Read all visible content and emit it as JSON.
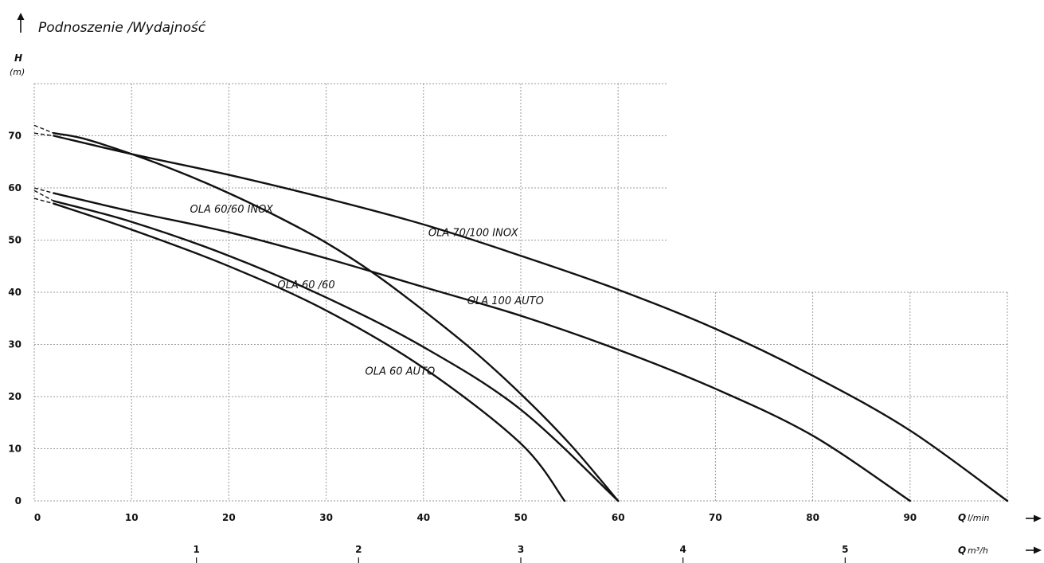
{
  "chart_data": {
    "type": "line",
    "title": "Podnoszenie /Wydajność",
    "ylabel_symbol": "H",
    "ylabel_unit": "(m)",
    "xlabel_symbol": "Q",
    "xlabel_unit": "l/min",
    "x2label_symbol": "Q",
    "x2label_unit": "m³/h",
    "xlim": [
      0,
      100
    ],
    "ylim": [
      0,
      80
    ],
    "x_ticks": [
      "0",
      "10",
      "20",
      "30",
      "40",
      "50",
      "60",
      "70",
      "80",
      "90"
    ],
    "x_tick_values": [
      0,
      10,
      20,
      30,
      40,
      50,
      60,
      70,
      80,
      90
    ],
    "y_ticks": [
      "0",
      "10",
      "20",
      "30",
      "40",
      "50",
      "60",
      "70"
    ],
    "y_tick_values": [
      0,
      10,
      20,
      30,
      40,
      50,
      60,
      70
    ],
    "x2_ticks": [
      "1",
      "2",
      "3",
      "4",
      "5"
    ],
    "x2_tick_values": [
      1,
      2,
      3,
      4,
      5
    ],
    "grid": true,
    "series": [
      {
        "name": "OLA 60/60 INOX",
        "label_at": [
          16,
          56
        ],
        "x": [
          2,
          5,
          10,
          15,
          20,
          25,
          30,
          35,
          40,
          45,
          50,
          55,
          60
        ],
        "y": [
          70.5,
          69.5,
          66.5,
          63,
          59,
          54.5,
          49.5,
          43.5,
          36.5,
          29,
          20.5,
          11,
          0
        ]
      },
      {
        "name": "OLA 70/100 INOX",
        "label_at": [
          40.5,
          51.5
        ],
        "x": [
          2,
          10,
          20,
          30,
          40,
          50,
          60,
          70,
          80,
          90,
          100
        ],
        "y": [
          70,
          66.5,
          62.5,
          58,
          53,
          47,
          40.5,
          33,
          24,
          13.5,
          0
        ]
      },
      {
        "name": "OLA 60 /60",
        "label_at": [
          25,
          41.5
        ],
        "x": [
          2,
          10,
          20,
          30,
          40,
          50,
          60
        ],
        "y": [
          57.5,
          53.5,
          47,
          39,
          29.5,
          17.5,
          0
        ]
      },
      {
        "name": "OLA 100 AUTO",
        "label_at": [
          44.5,
          38.5
        ],
        "x": [
          2,
          10,
          20,
          30,
          40,
          50,
          60,
          70,
          80,
          90
        ],
        "y": [
          59,
          55.5,
          51.5,
          46.5,
          41,
          35.5,
          29,
          21.5,
          12.5,
          0
        ]
      },
      {
        "name": "OLA 60 AUTO",
        "label_at": [
          34,
          25
        ],
        "x": [
          2,
          10,
          20,
          30,
          40,
          50,
          54.5
        ],
        "y": [
          57,
          52,
          45,
          36.5,
          25.5,
          11,
          0
        ]
      }
    ],
    "extrapolations": [
      {
        "x": [
          0,
          2
        ],
        "y": [
          72,
          70.5
        ]
      },
      {
        "x": [
          0,
          2
        ],
        "y": [
          70.5,
          70
        ]
      },
      {
        "x": [
          0,
          2
        ],
        "y": [
          60,
          59
        ]
      },
      {
        "x": [
          0,
          2
        ],
        "y": [
          59.5,
          57.5
        ]
      },
      {
        "x": [
          0,
          2
        ],
        "y": [
          58,
          57
        ]
      }
    ]
  }
}
